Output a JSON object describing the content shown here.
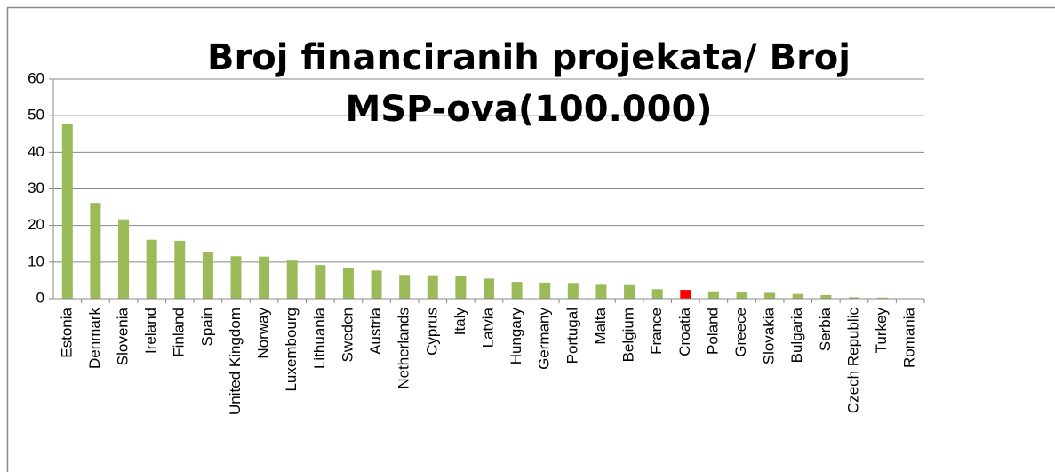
{
  "chart_data": {
    "type": "bar",
    "title": "Broj financiranih projekata/ Broj MSP-ova(100.000)",
    "categories": [
      "Estonia",
      "Denmark",
      "Slovenia",
      "Ireland",
      "Finland",
      "Spain",
      "United Kingdom",
      "Norway",
      "Luxembourg",
      "Lithuania",
      "Sweden",
      "Austria",
      "Netherlands",
      "Cyprus",
      "Italy",
      "Latvia",
      "Hungary",
      "Germany",
      "Portugal",
      "Malta",
      "Belgium",
      "France",
      "Croatia",
      "Poland",
      "Greece",
      "Slovakia",
      "Bulgaria",
      "Serbia",
      "Czech Republic",
      "Turkey",
      "Romania"
    ],
    "values": [
      47.8,
      26.2,
      21.7,
      16.1,
      15.8,
      12.8,
      11.6,
      11.5,
      10.4,
      9.2,
      8.3,
      7.7,
      6.5,
      6.4,
      6.1,
      5.5,
      4.6,
      4.4,
      4.3,
      3.8,
      3.7,
      2.6,
      2.4,
      2.0,
      1.9,
      1.6,
      1.3,
      1.0,
      0.4,
      0.3,
      0
    ],
    "colors": [
      "#9bbb59",
      "#9bbb59",
      "#9bbb59",
      "#9bbb59",
      "#9bbb59",
      "#9bbb59",
      "#9bbb59",
      "#9bbb59",
      "#9bbb59",
      "#9bbb59",
      "#9bbb59",
      "#9bbb59",
      "#9bbb59",
      "#9bbb59",
      "#9bbb59",
      "#9bbb59",
      "#9bbb59",
      "#9bbb59",
      "#9bbb59",
      "#9bbb59",
      "#9bbb59",
      "#9bbb59",
      "#ff0000",
      "#9bbb59",
      "#9bbb59",
      "#9bbb59",
      "#9bbb59",
      "#9bbb59",
      "#9bbb59",
      "#9bbb59",
      "#9bbb59"
    ],
    "ylim": [
      0,
      60
    ],
    "yticks": [
      0,
      10,
      20,
      30,
      40,
      50,
      60
    ],
    "grid": true
  }
}
